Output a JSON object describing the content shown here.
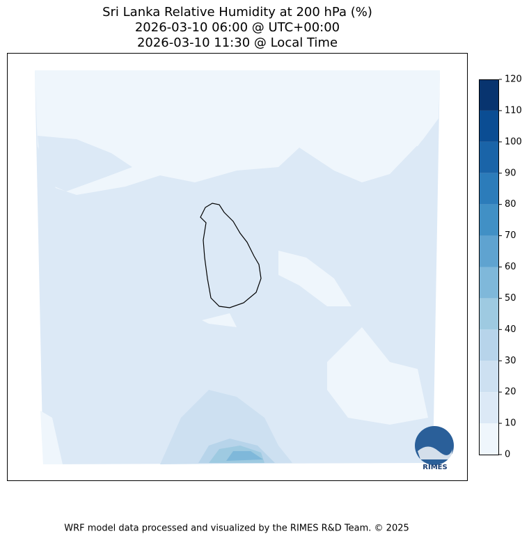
{
  "chart_data": {
    "type": "contour-map",
    "title": [
      "Sri Lanka Relative Humidity at 200 hPa (%)",
      "2026-03-10 06:00 @ UTC+00:00",
      "2026-03-10 11:30 @ Local Time"
    ],
    "colorbar": {
      "levels": [
        0,
        10,
        20,
        30,
        40,
        50,
        60,
        70,
        80,
        90,
        100,
        110,
        120
      ],
      "colors": [
        "#eff6fc",
        "#dce9f6",
        "#cde0f1",
        "#b7d4ea",
        "#9ecae1",
        "#7fb8da",
        "#5fa3d0",
        "#4190c5",
        "#2c7cba",
        "#1a64a8",
        "#0b4d93",
        "#08346f"
      ]
    },
    "logo": "RIMES",
    "footer": "WRF model data processed and visualized by the RIMES R&D Team. © 2025"
  }
}
